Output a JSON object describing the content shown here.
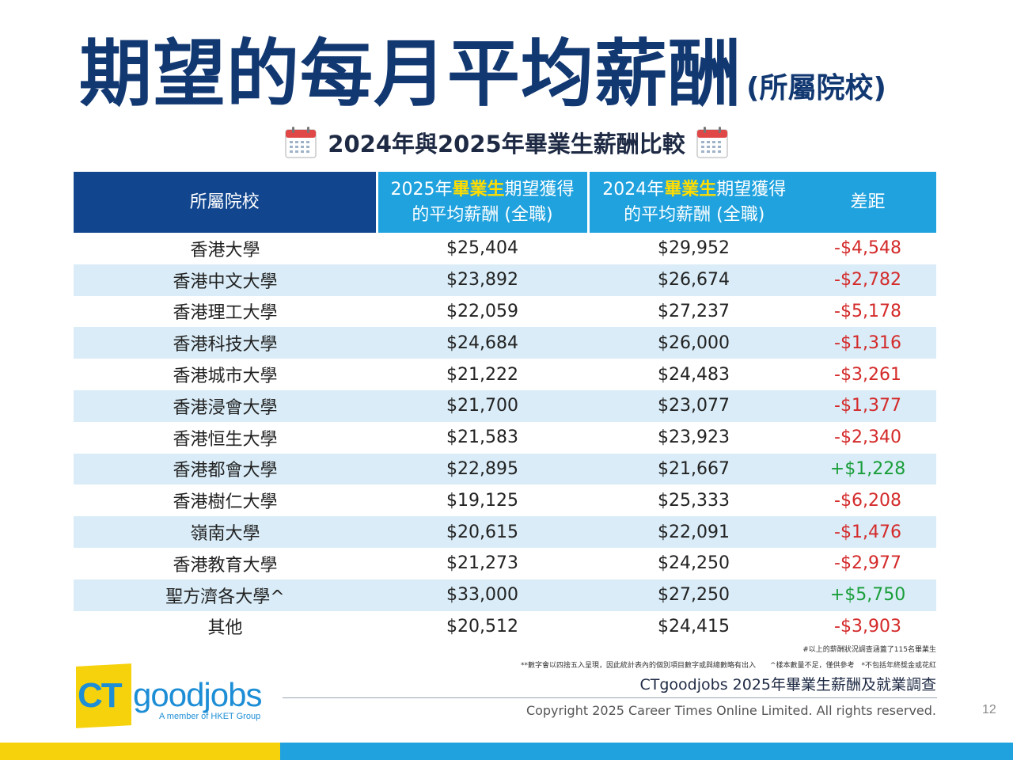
{
  "title": {
    "main": "期望的每月平均薪酬",
    "sub": "(所屬院校)"
  },
  "subtitle": "2024年與2025年畢業生薪酬比較",
  "icons": {
    "left": "calendar-icon",
    "right": "calendar-icon"
  },
  "colors": {
    "navy": "#11468f",
    "sky": "#1fa2de",
    "highlight": "#ffdd00",
    "negative": "#d42a2a",
    "positive": "#1a9e3a",
    "yellow": "#f6d20d"
  },
  "table": {
    "headers": {
      "school": "所屬院校",
      "y2025": {
        "pre": "2025年",
        "hl": "畢業生",
        "post": "期望獲得",
        "line2": "的平均薪酬 (全職)"
      },
      "y2024": {
        "pre": "2024年",
        "hl": "畢業生",
        "post": "期望獲得",
        "line2": "的平均薪酬 (全職)"
      },
      "diff": "差距"
    },
    "rows": [
      {
        "school": "香港大學",
        "y2025": "$25,404",
        "y2024": "$29,952",
        "diff": "-$4,548"
      },
      {
        "school": "香港中文大學",
        "y2025": "$23,892",
        "y2024": "$26,674",
        "diff": "-$2,782"
      },
      {
        "school": "香港理工大學",
        "y2025": "$22,059",
        "y2024": "$27,237",
        "diff": "-$5,178"
      },
      {
        "school": "香港科技大學",
        "y2025": "$24,684",
        "y2024": "$26,000",
        "diff": "-$1,316"
      },
      {
        "school": "香港城市大學",
        "y2025": "$21,222",
        "y2024": "$24,483",
        "diff": "-$3,261"
      },
      {
        "school": "香港浸會大學",
        "y2025": "$21,700",
        "y2024": "$23,077",
        "diff": "-$1,377"
      },
      {
        "school": "香港恒生大學",
        "y2025": "$21,583",
        "y2024": "$23,923",
        "diff": "-$2,340"
      },
      {
        "school": "香港都會大學",
        "y2025": "$22,895",
        "y2024": "$21,667",
        "diff": "+$1,228"
      },
      {
        "school": "香港樹仁大學",
        "y2025": "$19,125",
        "y2024": "$25,333",
        "diff": "-$6,208"
      },
      {
        "school": "嶺南大學",
        "y2025": "$20,615",
        "y2024": "$22,091",
        "diff": "-$1,476"
      },
      {
        "school": "香港教育大學",
        "y2025": "$21,273",
        "y2024": "$24,250",
        "diff": "-$2,977"
      },
      {
        "school": "聖方濟各大學^",
        "y2025": "$33,000",
        "y2024": "$27,250",
        "diff": "+$5,750"
      },
      {
        "school": "其他",
        "y2025": "$20,512",
        "y2024": "$24,415",
        "diff": "-$3,903"
      }
    ]
  },
  "notes": {
    "line1": "#以上的薪酬狀況調查涵蓋了115名畢業生",
    "line2": "**數字會以四捨五入呈現，因此統計表內的個別項目數字或與總數略有出入　　^樣本數量不足，僅供參考　*不包括年終獎金或花紅",
    "survey": "CTgoodjobs 2025年畢業生薪酬及就業調查"
  },
  "footer": {
    "copyright": "Copyright 2025 Career Times Online Limited. All rights reserved.",
    "page": "12"
  },
  "logo": {
    "ct": "CT",
    "goodjobs": "goodjobs",
    "tagline": "A member of HKET Group"
  }
}
